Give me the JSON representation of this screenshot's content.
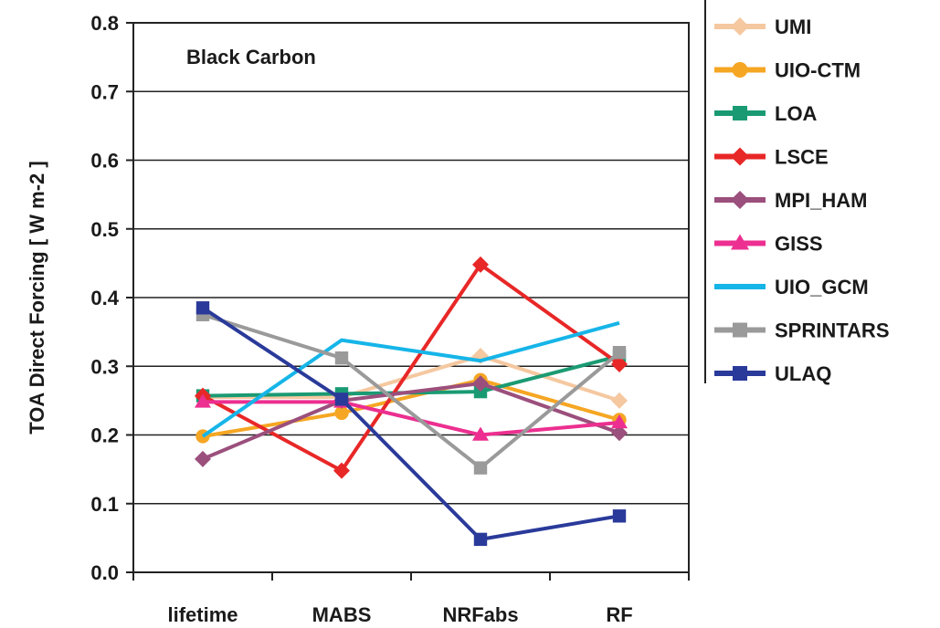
{
  "chart_data": {
    "type": "line",
    "title": "Black Carbon",
    "xlabel": "",
    "ylabel": "TOA Direct Forcing [ W m-2 ]",
    "categories": [
      "lifetime",
      "MABS",
      "NRFabs",
      "RF"
    ],
    "ylim": [
      0.0,
      0.8
    ],
    "yticks": [
      "0.0",
      "0.1",
      "0.2",
      "0.3",
      "0.4",
      "0.5",
      "0.6",
      "0.7",
      "0.8"
    ],
    "grid": "horizontal",
    "legend_position": "right",
    "series": [
      {
        "name": "UMI",
        "color": "#f5c8a0",
        "marker": "diamond",
        "values": [
          0.255,
          0.255,
          0.315,
          0.25
        ]
      },
      {
        "name": "UIO-CTM",
        "color": "#f5a623",
        "marker": "circle",
        "values": [
          0.198,
          0.232,
          0.28,
          0.222
        ]
      },
      {
        "name": "LOA",
        "color": "#1a9a73",
        "marker": "square",
        "values": [
          0.257,
          0.26,
          0.263,
          0.315
        ]
      },
      {
        "name": "LSCE",
        "color": "#e82727",
        "marker": "diamond",
        "values": [
          0.257,
          0.148,
          0.448,
          0.303
        ]
      },
      {
        "name": "MPI_HAM",
        "color": "#9b4f7c",
        "marker": "diamond",
        "values": [
          0.165,
          0.25,
          0.275,
          0.203
        ]
      },
      {
        "name": "GISS",
        "color": "#ec2f90",
        "marker": "triangle",
        "values": [
          0.248,
          0.248,
          0.2,
          0.218
        ]
      },
      {
        "name": "UIO_GCM",
        "color": "#16b5e8",
        "marker": "none",
        "values": [
          0.198,
          0.338,
          0.308,
          0.363
        ]
      },
      {
        "name": "SPRINTARS",
        "color": "#9a9a9a",
        "marker": "square",
        "values": [
          0.375,
          0.312,
          0.152,
          0.32
        ]
      },
      {
        "name": "ULAQ",
        "color": "#2a3a9a",
        "marker": "square",
        "values": [
          0.385,
          0.252,
          0.048,
          0.082
        ]
      }
    ]
  }
}
